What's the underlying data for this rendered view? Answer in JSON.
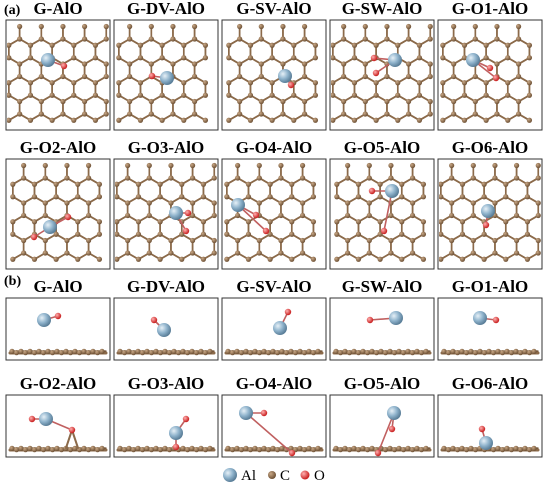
{
  "figure": {
    "section_a_label": "(a)",
    "section_b_label": "(b)",
    "top_view_panels": [
      "G-AlO",
      "G-DV-AlO",
      "G-SV-AlO",
      "G-SW-AlO",
      "G-O1-AlO",
      "G-O2-AlO",
      "G-O3-AlO",
      "G-O4-AlO",
      "G-O5-AlO",
      "G-O6-AlO"
    ],
    "side_view_panels": [
      "G-AlO",
      "G-DV-AlO",
      "G-SV-AlO",
      "G-SW-AlO",
      "G-O1-AlO",
      "G-O2-AlO",
      "G-O3-AlO",
      "G-O4-AlO",
      "G-O5-AlO",
      "G-O6-AlO"
    ]
  },
  "legend": {
    "items": [
      {
        "label": "Al",
        "color": "#8fb3cc"
      },
      {
        "label": "C",
        "color": "#8b6a4a"
      },
      {
        "label": "O",
        "color": "#e03030"
      }
    ]
  },
  "colors": {
    "carbon": "#8b6a4a",
    "aluminum": "#8fb3cc",
    "oxygen": "#e03030",
    "frame": "#333333"
  }
}
